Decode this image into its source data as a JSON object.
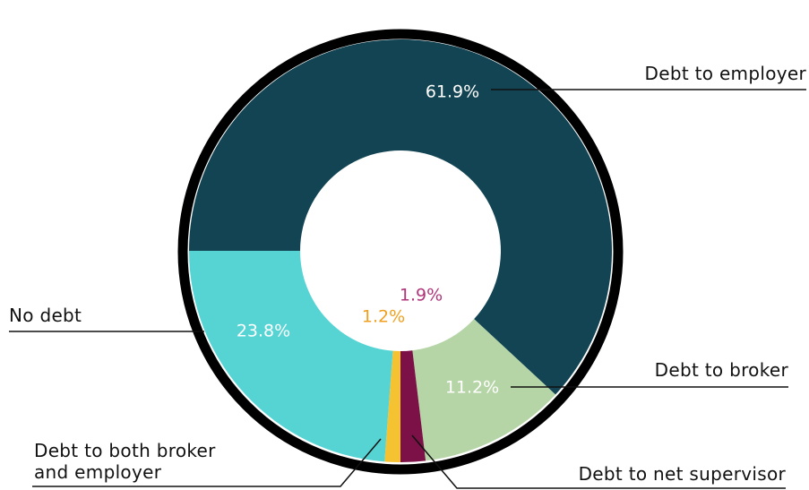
{
  "chart_data": {
    "type": "donut",
    "categories": [
      "Debt to employer",
      "Debt to broker",
      "Debt to net supervisor",
      "Debt to both broker and employer",
      "No debt"
    ],
    "values": [
      61.9,
      11.2,
      1.9,
      1.2,
      23.8
    ],
    "value_labels": [
      "61.9%",
      "11.2%",
      "1.9%",
      "1.2%",
      "23.8%"
    ],
    "colors": [
      "#134453",
      "#b5d5a6",
      "#7b1146",
      "#f5c232",
      "#56d4d4"
    ]
  }
}
